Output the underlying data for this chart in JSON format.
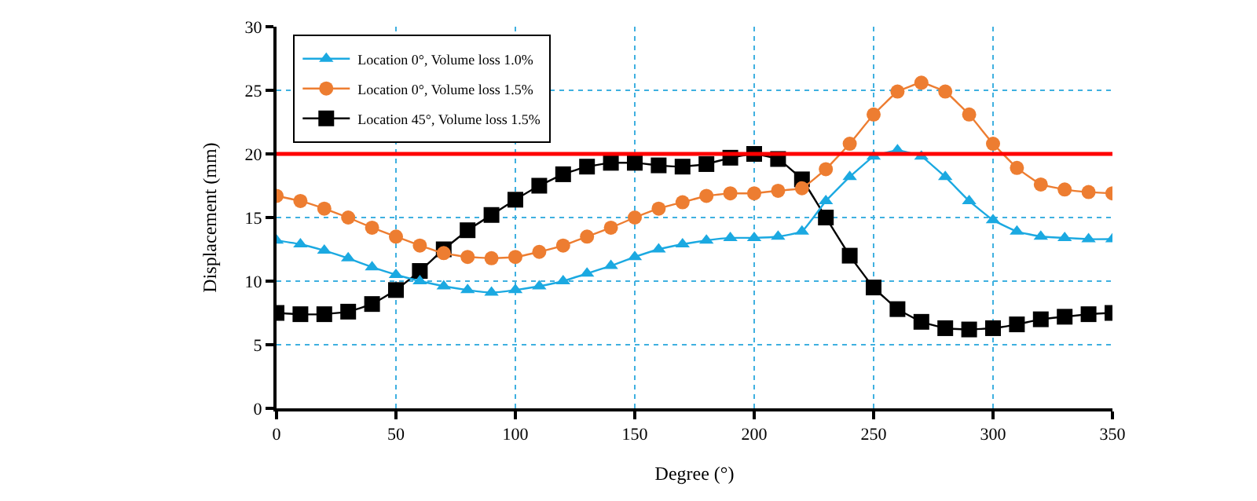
{
  "chart_data": {
    "type": "line",
    "xlabel": "Degree (°)",
    "ylabel": "Displacement (mm)",
    "x": [
      0,
      10,
      20,
      30,
      40,
      50,
      60,
      70,
      80,
      90,
      100,
      110,
      120,
      130,
      140,
      150,
      160,
      170,
      180,
      190,
      200,
      210,
      220,
      230,
      240,
      250,
      260,
      270,
      280,
      290,
      300,
      310,
      320,
      330,
      340,
      350
    ],
    "xlim": [
      0,
      350
    ],
    "xticks": [
      0,
      50,
      100,
      150,
      200,
      250,
      300,
      350
    ],
    "ylim": [
      0,
      30
    ],
    "yticks": [
      0,
      5,
      10,
      15,
      20,
      25,
      30
    ],
    "grid": true,
    "legend": "top left",
    "series": [
      {
        "name": "Location 0°, Volume loss 1.0%",
        "color": "#1ba9e1",
        "marker": "triangle",
        "values": [
          13.2,
          12.9,
          12.4,
          11.8,
          11.1,
          10.5,
          10.0,
          9.6,
          9.3,
          9.1,
          9.3,
          9.6,
          10.0,
          10.6,
          11.2,
          11.9,
          12.5,
          12.9,
          13.2,
          13.4,
          13.4,
          13.5,
          13.9,
          16.3,
          18.2,
          19.8,
          20.3,
          19.8,
          18.2,
          16.3,
          14.8,
          13.9,
          13.5,
          13.4,
          13.3,
          13.3
        ]
      },
      {
        "name": "Location 0°, Volume loss 1.5%",
        "color": "#ed7d31",
        "marker": "circle",
        "values": [
          16.7,
          16.3,
          15.7,
          15.0,
          14.2,
          13.5,
          12.8,
          12.2,
          11.9,
          11.8,
          11.9,
          12.3,
          12.8,
          13.5,
          14.2,
          15.0,
          15.7,
          16.2,
          16.7,
          16.9,
          16.9,
          17.1,
          17.3,
          18.8,
          20.8,
          23.1,
          24.9,
          25.6,
          24.9,
          23.1,
          20.8,
          18.9,
          17.6,
          17.2,
          17.0,
          16.9
        ]
      },
      {
        "name": "Location 45°, Volume loss 1.5%",
        "color": "#000000",
        "marker": "square",
        "values": [
          7.5,
          7.4,
          7.4,
          7.6,
          8.2,
          9.3,
          10.8,
          12.5,
          14.0,
          15.2,
          16.4,
          17.5,
          18.4,
          19.0,
          19.3,
          19.3,
          19.1,
          19.0,
          19.2,
          19.7,
          20.0,
          19.6,
          18.0,
          15.0,
          12.0,
          9.5,
          7.8,
          6.8,
          6.3,
          6.2,
          6.3,
          6.6,
          7.0,
          7.2,
          7.4,
          7.5
        ]
      }
    ],
    "ref_lines": [
      {
        "axis": "y",
        "value": 20,
        "color": "#ff0000"
      }
    ]
  }
}
